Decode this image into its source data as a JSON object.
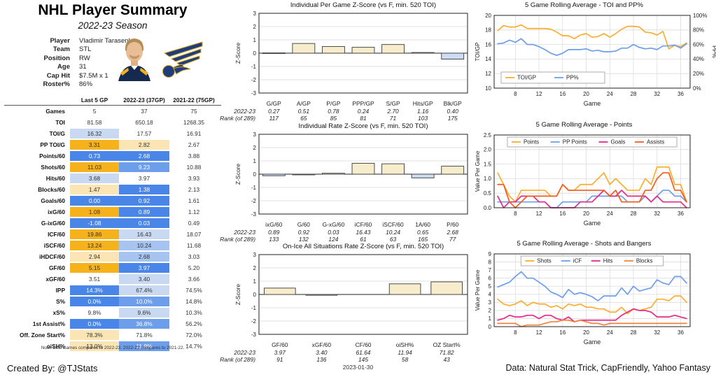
{
  "header": {
    "title": "NHL Player Summary",
    "season": "2022-23 Season"
  },
  "player": {
    "fields": [
      {
        "label": "Player",
        "value": "Vladimir Tarasenko"
      },
      {
        "label": "Team",
        "value": "STL"
      },
      {
        "label": "Position",
        "value": "RW"
      },
      {
        "label": "Age",
        "value": "31"
      },
      {
        "label": "Cap Hit",
        "value": "$7.5M x 1"
      },
      {
        "label": "Roster%",
        "value": "86%"
      }
    ]
  },
  "stats_table": {
    "columns": [
      "Last 5 GP",
      "2022-23 (37GP)",
      "2021-22 (75GP)"
    ],
    "palette": {
      "gold": {
        "bg": "#F5B21B",
        "fg": "#333333"
      },
      "cream": {
        "bg": "#FBE5B5",
        "fg": "#333333"
      },
      "white": {
        "bg": "#FFFFFF",
        "fg": "#333333"
      },
      "lightblue": {
        "bg": "#C9D9F2",
        "fg": "#333333"
      },
      "paleblue": {
        "bg": "#A7C4F0",
        "fg": "#333333"
      },
      "medblue": {
        "bg": "#6D9EEB",
        "fg": "#FFFFFF"
      },
      "blue": {
        "bg": "#4A86E8",
        "fg": "#FFFFFF"
      }
    },
    "rows": [
      {
        "label": "Games",
        "values": [
          "5",
          "37",
          "75"
        ],
        "colors": [
          "white",
          "white",
          "white"
        ]
      },
      {
        "label": "TOI",
        "values": [
          "81.58",
          "650.18",
          "1268.35"
        ],
        "colors": [
          "white",
          "white",
          "white"
        ]
      },
      {
        "label": "TOI/G",
        "values": [
          "16.32",
          "17.57",
          "16.91"
        ],
        "colors": [
          "lightblue",
          "white",
          "white"
        ]
      },
      {
        "label": "PP TOI/G",
        "values": [
          "3.31",
          "2.82",
          "2.67"
        ],
        "colors": [
          "gold",
          "cream",
          "white"
        ]
      },
      {
        "label": "Points/60",
        "values": [
          "0.73",
          "2.68",
          "3.88"
        ],
        "colors": [
          "blue",
          "blue",
          "white"
        ]
      },
      {
        "label": "Shots/60",
        "values": [
          "11.03",
          "9.23",
          "10.88"
        ],
        "colors": [
          "gold",
          "medblue",
          "white"
        ]
      },
      {
        "label": "Hits/60",
        "values": [
          "3.68",
          "3.97",
          "3.93"
        ],
        "colors": [
          "lightblue",
          "white",
          "white"
        ]
      },
      {
        "label": "Blocks/60",
        "values": [
          "1.47",
          "1.38",
          "2.13"
        ],
        "colors": [
          "cream",
          "blue",
          "white"
        ]
      },
      {
        "label": "Goals/60",
        "values": [
          "0.00",
          "0.92",
          "1.61"
        ],
        "colors": [
          "blue",
          "blue",
          "white"
        ]
      },
      {
        "label": "ixG/60",
        "values": [
          "1.08",
          "0.89",
          "1.12"
        ],
        "colors": [
          "gold",
          "blue",
          "white"
        ]
      },
      {
        "label": "G-ixG/60",
        "values": [
          "-1.08",
          "0.03",
          "0.49"
        ],
        "colors": [
          "blue",
          "blue",
          "white"
        ]
      },
      {
        "label": "ICF/60",
        "values": [
          "19.86",
          "16.43",
          "18.07"
        ],
        "colors": [
          "gold",
          "lightblue",
          "white"
        ]
      },
      {
        "label": "iSCF/60",
        "values": [
          "13.24",
          "10.24",
          "11.68"
        ],
        "colors": [
          "gold",
          "paleblue",
          "white"
        ]
      },
      {
        "label": "iHDCF/60",
        "values": [
          "2.94",
          "2.68",
          "3.03"
        ],
        "colors": [
          "cream",
          "paleblue",
          "white"
        ]
      },
      {
        "label": "GF/60",
        "values": [
          "5.15",
          "3.97",
          "5.20"
        ],
        "colors": [
          "gold",
          "blue",
          "white"
        ]
      },
      {
        "label": "xGF/60",
        "values": [
          "3.51",
          "3.40",
          "3.66"
        ],
        "colors": [
          "white",
          "lightblue",
          "white"
        ]
      },
      {
        "label": "IPP",
        "values": [
          "14.3%",
          "67.4%",
          "74.5%"
        ],
        "colors": [
          "blue",
          "lightblue",
          "white"
        ]
      },
      {
        "label": "S%",
        "values": [
          "0.0%",
          "10.0%",
          "14.8%"
        ],
        "colors": [
          "blue",
          "medblue",
          "white"
        ]
      },
      {
        "label": "xS%",
        "values": [
          "9.8%",
          "9.6%",
          "10.3%"
        ],
        "colors": [
          "white",
          "lightblue",
          "white"
        ]
      },
      {
        "label": "1st Assist%",
        "values": [
          "0.0%",
          "36.8%",
          "56.2%"
        ],
        "colors": [
          "blue",
          "medblue",
          "white"
        ]
      },
      {
        "label": "Off. Zone Start%",
        "values": [
          "78.3%",
          "71.8%",
          "72.0%"
        ],
        "colors": [
          "cream",
          "white",
          "white"
        ]
      },
      {
        "label": "oiSH%",
        "values": [
          "13.0%",
          "11.9%",
          "14.7%"
        ],
        "colors": [
          "cream",
          "medblue",
          "white"
        ]
      }
    ],
    "note": "Note: Last Games compares to 2022-23. 2022-23 compares to 2021-22."
  },
  "chart_data": [
    {
      "type": "bar",
      "title": "Individual Per Game Z-Score (vs F, min. 520 TOI)",
      "ylabel": "Z-Score",
      "ylim": [
        -3,
        3
      ],
      "yticks": [
        -3,
        -2,
        -1,
        0,
        1,
        2,
        3
      ],
      "categories": [
        "G/GP",
        "A/GP",
        "P/GP",
        "PPP/GP",
        "S/GP",
        "Hits/GP",
        "Blk/GP"
      ],
      "values": [
        0.02,
        0.73,
        0.5,
        0.44,
        0.65,
        0.05,
        -0.45
      ],
      "stat_row_label": "2022-23",
      "rank_row_label": "Rank (of 289)",
      "stat_values": [
        "0.27",
        "0.51",
        "0.78",
        "0.24",
        "2.70",
        "1.16",
        "0.40"
      ],
      "ranks": [
        "117",
        "65",
        "85",
        "81",
        "71",
        "103",
        "175"
      ],
      "bar_pos_color": "#F7ECCB",
      "bar_neg_color": "#CDDCF5"
    },
    {
      "type": "bar",
      "title": "Individual Rate Z-Score (vs F, min. 520 TOI)",
      "ylabel": "Z-Score",
      "ylim": [
        -3,
        3
      ],
      "yticks": [
        -3,
        -2,
        -1,
        0,
        1,
        2,
        3
      ],
      "categories": [
        "ixG/60",
        "G/60",
        "G-xG/60",
        "iCF/60",
        "iSCF/60",
        "1A/60",
        "P/60"
      ],
      "values": [
        -0.12,
        -0.03,
        0.07,
        0.82,
        0.78,
        -0.28,
        0.6
      ],
      "stat_row_label": "2022-23",
      "rank_row_label": "Rank (of 289)",
      "stat_values": [
        "0.89",
        "0.92",
        "0.03",
        "16.43",
        "10.24",
        "0.65",
        "2.68"
      ],
      "ranks": [
        "133",
        "132",
        "124",
        "61",
        "63",
        "165",
        "77"
      ],
      "bar_pos_color": "#F7ECCB",
      "bar_neg_color": "#CDDCF5"
    },
    {
      "type": "bar",
      "title": "On-Ice All Situations Rate Z-Score (vs F, min. 520 TOI)",
      "ylabel": "Z-Score",
      "ylim": [
        -3,
        3
      ],
      "yticks": [
        -3,
        -2,
        -1,
        0,
        1,
        2,
        3
      ],
      "categories": [
        "GF/60",
        "xGF/60",
        "CF/60",
        "oiSH%",
        "OZ Start%"
      ],
      "values": [
        0.48,
        -0.06,
        0.0,
        0.8,
        0.95
      ],
      "stat_row_label": "2022-23",
      "rank_row_label": "Rank (of 289)",
      "stat_values": [
        "3.97",
        "3.40",
        "61.64",
        "11.94",
        "71.82"
      ],
      "ranks": [
        "91",
        "136",
        "145",
        "58",
        "43"
      ],
      "bar_pos_color": "#F7ECCB",
      "bar_neg_color": "#CDDCF5"
    },
    {
      "type": "line",
      "title": "5 Game Rolling Average - TOI and PP%",
      "xlabel": "Game",
      "ylabel": "TOI/GP",
      "ylabel_right": "PP%",
      "ylim": [
        10,
        20
      ],
      "yticks": [
        10,
        12,
        14,
        16,
        18,
        20
      ],
      "ytick_labels": [
        "10",
        "12",
        "14",
        "16",
        "18",
        "20"
      ],
      "ylim_right": [
        0,
        100
      ],
      "yticks_right": [
        0,
        20,
        40,
        60,
        80,
        100
      ],
      "ytick_labels_right": [
        "0%",
        "20%",
        "40%",
        "60%",
        "80%",
        "100%"
      ],
      "x_start": 5,
      "xlim": [
        4.4,
        37.6
      ],
      "xticks": [
        8,
        12,
        16,
        20,
        24,
        28,
        32,
        36
      ],
      "legend_position": "bottom-left",
      "series": [
        {
          "name": "TOI/GP",
          "color": "#FBAE2E",
          "axis": "left",
          "values": [
            17.9,
            18.6,
            18.4,
            18.4,
            18.7,
            18.2,
            18.2,
            18.2,
            18.2,
            18.1,
            17.7,
            17.2,
            17.2,
            16.8,
            17.3,
            17.5,
            17.0,
            17.1,
            17.5,
            17.0,
            17.5,
            18.1,
            18.5,
            18.5,
            18.4,
            17.7,
            17.6,
            17.3,
            17.8,
            15.4,
            15.9,
            15.7,
            16.2
          ]
        },
        {
          "name": "PP%",
          "color": "#6D9EEB",
          "axis": "right",
          "values": [
            61,
            62,
            66,
            63,
            68,
            60,
            60,
            57,
            53,
            48,
            45,
            48,
            53,
            53,
            53,
            54,
            51,
            52,
            50,
            50,
            51,
            55,
            55,
            60,
            56,
            54,
            55,
            53,
            58,
            58,
            59,
            55,
            61
          ]
        }
      ]
    },
    {
      "type": "line",
      "title": "5 Game Rolling Average - Points",
      "xlabel": "Game",
      "ylabel": "Value Per Game",
      "ylim": [
        0,
        2.5
      ],
      "yticks": [
        0,
        0.5,
        1,
        1.5,
        2,
        2.5
      ],
      "ytick_labels": [
        "0.0",
        "0.5",
        "1.0",
        "1.5",
        "2.0",
        "2.5"
      ],
      "x_start": 5,
      "xlim": [
        4.4,
        37.6
      ],
      "xticks": [
        8,
        12,
        16,
        20,
        24,
        28,
        32,
        36
      ],
      "legend_position": "top",
      "series": [
        {
          "name": "Points",
          "color": "#FBAE2E",
          "axis": "left",
          "values": [
            1.2,
            0.8,
            0.4,
            0.2,
            0.6,
            0.6,
            0.6,
            0.6,
            0.6,
            0.4,
            0.4,
            0.8,
            0.6,
            0.6,
            0.8,
            0.8,
            0.8,
            1.0,
            1.2,
            0.8,
            1.0,
            0.8,
            0.6,
            0.6,
            0.6,
            1.0,
            0.8,
            1.4,
            1.4,
            1.4,
            0.8,
            0.8,
            0.2
          ]
        },
        {
          "name": "PP Points",
          "color": "#6D9EEB",
          "axis": "left",
          "values": [
            0.2,
            0.2,
            0.2,
            0.2,
            0.2,
            0.2,
            0.2,
            0.2,
            0.2,
            0.0,
            0.0,
            0.2,
            0.2,
            0.2,
            0.2,
            0.2,
            0.4,
            0.4,
            0.4,
            0.4,
            0.4,
            0.4,
            0.2,
            0.2,
            0.2,
            0.4,
            0.2,
            0.4,
            0.6,
            0.6,
            0.4,
            0.4,
            0.2
          ]
        },
        {
          "name": "Goals",
          "color": "#E7298A",
          "axis": "left",
          "values": [
            0.4,
            0.0,
            0.2,
            0.2,
            0.4,
            0.4,
            0.4,
            0.2,
            0.2,
            0.0,
            0.0,
            0.0,
            0.0,
            0.0,
            0.2,
            0.2,
            0.2,
            0.4,
            0.6,
            0.4,
            0.4,
            0.6,
            0.4,
            0.4,
            0.4,
            0.4,
            0.2,
            0.4,
            0.2,
            0.2,
            0.2,
            0.2,
            0.0
          ]
        },
        {
          "name": "Assists",
          "color": "#F25C1C",
          "axis": "left",
          "values": [
            0.8,
            0.8,
            0.2,
            0.0,
            0.2,
            0.4,
            0.4,
            0.4,
            0.4,
            0.4,
            0.4,
            0.8,
            0.6,
            0.6,
            0.6,
            0.6,
            0.6,
            0.6,
            0.6,
            0.4,
            0.6,
            0.2,
            0.2,
            0.2,
            0.2,
            0.6,
            0.6,
            1.0,
            1.2,
            1.2,
            0.6,
            0.6,
            0.2
          ]
        }
      ]
    },
    {
      "type": "line",
      "title": "5 Game Rolling Average - Shots and Bangers",
      "xlabel": "Game",
      "ylabel": "Value Per Game",
      "ylim": [
        0,
        9
      ],
      "yticks": [
        0,
        1,
        2,
        3,
        4,
        5,
        6,
        7,
        8,
        9
      ],
      "ytick_labels": [
        "0",
        "1",
        "2",
        "3",
        "4",
        "5",
        "6",
        "7",
        "8",
        "9"
      ],
      "x_start": 5,
      "xlim": [
        4.4,
        37.6
      ],
      "xticks": [
        8,
        12,
        16,
        20,
        24,
        28,
        32,
        36
      ],
      "legend_position": "top",
      "series": [
        {
          "name": "Shots",
          "color": "#FBAE2E",
          "axis": "left",
          "values": [
            3.4,
            2.8,
            2.6,
            2.8,
            3.2,
            2.6,
            3.0,
            2.8,
            2.8,
            2.4,
            2.6,
            2.2,
            2.8,
            2.6,
            2.8,
            2.4,
            2.4,
            2.2,
            2.2,
            1.8,
            1.8,
            2.4,
            1.6,
            2.2,
            2.0,
            2.2,
            2.4,
            3.4,
            3.4,
            3.2,
            3.8,
            3.8,
            3.0
          ]
        },
        {
          "name": "iCF",
          "color": "#6D9EEB",
          "axis": "left",
          "values": [
            4.9,
            5.2,
            5.5,
            6.2,
            6.8,
            6.0,
            6.0,
            5.5,
            5.0,
            4.3,
            4.0,
            3.6,
            4.6,
            4.0,
            4.2,
            4.0,
            3.7,
            3.2,
            3.8,
            3.8,
            3.8,
            4.8,
            4.0,
            5.0,
            4.4,
            4.6,
            4.8,
            5.8,
            5.4,
            5.2,
            6.2,
            6.2,
            5.4
          ]
        },
        {
          "name": "Hits",
          "color": "#E7298A",
          "axis": "left",
          "values": [
            0.8,
            1.0,
            1.4,
            1.2,
            1.2,
            1.4,
            1.4,
            1.0,
            1.4,
            1.4,
            1.0,
            0.8,
            1.2,
            0.6,
            0.8,
            0.8,
            0.8,
            0.8,
            0.8,
            0.8,
            0.8,
            1.4,
            1.8,
            2.2,
            2.0,
            2.0,
            1.8,
            1.2,
            1.2,
            1.2,
            1.4,
            1.2,
            1.0
          ]
        },
        {
          "name": "Blocks",
          "color": "#F5823B",
          "axis": "left",
          "values": [
            0.4,
            0.4,
            0.4,
            0.4,
            0.0,
            0.2,
            0.2,
            0.2,
            0.4,
            0.6,
            0.6,
            0.8,
            0.8,
            0.6,
            0.8,
            0.6,
            0.4,
            0.4,
            0.2,
            0.4,
            0.4,
            0.4,
            0.4,
            0.4,
            0.4,
            0.4,
            0.4,
            0.4,
            0.4,
            0.4,
            0.4,
            0.4,
            0.4
          ]
        }
      ]
    }
  ],
  "footer": {
    "created_by": "Created By: @TJStats",
    "date": "2023-01-30",
    "source": "Data: Natural Stat Trick, CapFriendly, Yahoo Fantasy"
  }
}
